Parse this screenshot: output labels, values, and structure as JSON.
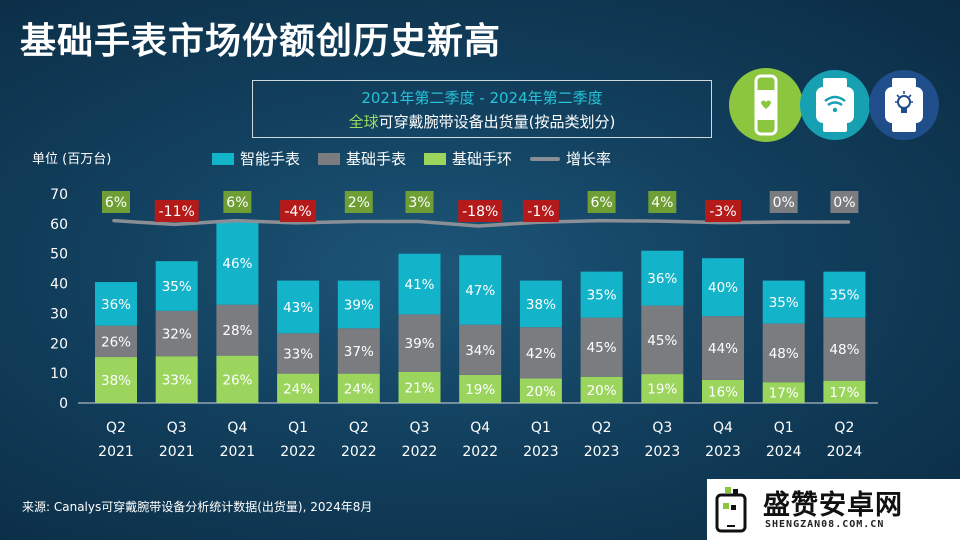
{
  "title": "基础手表市场份额创历史新高",
  "subtitle": {
    "line1": "2021年第二季度 - 2024年第二季度",
    "line2_highlight": "全球",
    "line2_rest": "可穿戴腕带设备出货量(按品类划分)"
  },
  "unit_label": "单位 (百万台)",
  "legend": {
    "smartwatch": "智能手表",
    "basic_watch": "基础手表",
    "basic_band": "基础手环",
    "growth": "增长率"
  },
  "source": "来源: Canalys可穿戴腕带设备分析统计数据(出货量), 2024年8月",
  "watermark": {
    "name": "盛赞安卓网",
    "url": "SHENGZAN08.COM.CN"
  },
  "icons": [
    "band-icon",
    "smartwatch-wifi-icon",
    "smartwatch-bulb-icon"
  ],
  "colors": {
    "smartwatch": "#13b4c9",
    "basic_watch": "#7a7c80",
    "basic_band": "#9bd55e",
    "growth_line": "#8a8f96",
    "growth_pos": "#6f9e35",
    "growth_neg": "#b51a1a",
    "growth_zero": "#7a7c80"
  },
  "chart_data": {
    "type": "bar",
    "stacked": true,
    "categories": [
      "Q2 2021",
      "Q3 2021",
      "Q4 2021",
      "Q1 2022",
      "Q2 2022",
      "Q3 2022",
      "Q4 2022",
      "Q1 2023",
      "Q2 2023",
      "Q3 2023",
      "Q4 2023",
      "Q1 2024",
      "Q2 2024"
    ],
    "category_lines": [
      [
        "Q2",
        "2021"
      ],
      [
        "Q3",
        "2021"
      ],
      [
        "Q4",
        "2021"
      ],
      [
        "Q1",
        "2022"
      ],
      [
        "Q2",
        "2022"
      ],
      [
        "Q3",
        "2022"
      ],
      [
        "Q4",
        "2022"
      ],
      [
        "Q1",
        "2023"
      ],
      [
        "Q2",
        "2023"
      ],
      [
        "Q3",
        "2023"
      ],
      [
        "Q4",
        "2023"
      ],
      [
        "Q1",
        "2024"
      ],
      [
        "Q2",
        "2024"
      ]
    ],
    "totals": [
      40.5,
      47.5,
      61,
      41,
      41,
      49.5,
      49.5,
      41,
      44,
      51,
      48.5,
      41,
      44
    ],
    "series": [
      {
        "name": "基础手环",
        "key": "basic_band",
        "share_labels": [
          "38%",
          "33%",
          "26%",
          "24%",
          "24%",
          "21%",
          "19%",
          "20%",
          "20%",
          "19%",
          "16%",
          "17%",
          "17%"
        ],
        "shares": [
          38,
          33,
          26,
          24,
          24,
          21,
          19,
          20,
          20,
          19,
          16,
          17,
          17
        ]
      },
      {
        "name": "基础手表",
        "key": "basic_watch",
        "share_labels": [
          "26%",
          "32%",
          "28%",
          "33%",
          "37%",
          "39%",
          "34%",
          "42%",
          "45%",
          "45%",
          "44%",
          "48%",
          "48%"
        ],
        "shares": [
          26,
          32,
          28,
          33,
          37,
          39,
          34,
          42,
          45,
          45,
          44,
          48,
          48
        ]
      },
      {
        "name": "智能手表",
        "key": "smartwatch",
        "share_labels": [
          "36%",
          "35%",
          "46%",
          "43%",
          "39%",
          "41%",
          "47%",
          "38%",
          "35%",
          "36%",
          "40%",
          "35%",
          "35%"
        ],
        "shares": [
          36,
          35,
          46,
          43,
          39,
          41,
          47,
          38,
          35,
          36,
          40,
          35,
          35
        ]
      }
    ],
    "growth": {
      "name": "增长率",
      "labels": [
        "6%",
        "-11%",
        "6%",
        "-4%",
        "2%",
        "3%",
        "-18%",
        "-1%",
        "6%",
        "4%",
        "-3%",
        "0%",
        "0%"
      ],
      "values": [
        6,
        -11,
        6,
        -4,
        2,
        3,
        -18,
        -1,
        6,
        4,
        -3,
        0,
        0
      ]
    },
    "ylim": [
      0,
      70
    ],
    "yticks": [
      "0",
      "10",
      "20",
      "30",
      "40",
      "50",
      "60",
      "70"
    ],
    "ylabel": "单位 (百万台)",
    "legend_position": "top"
  }
}
